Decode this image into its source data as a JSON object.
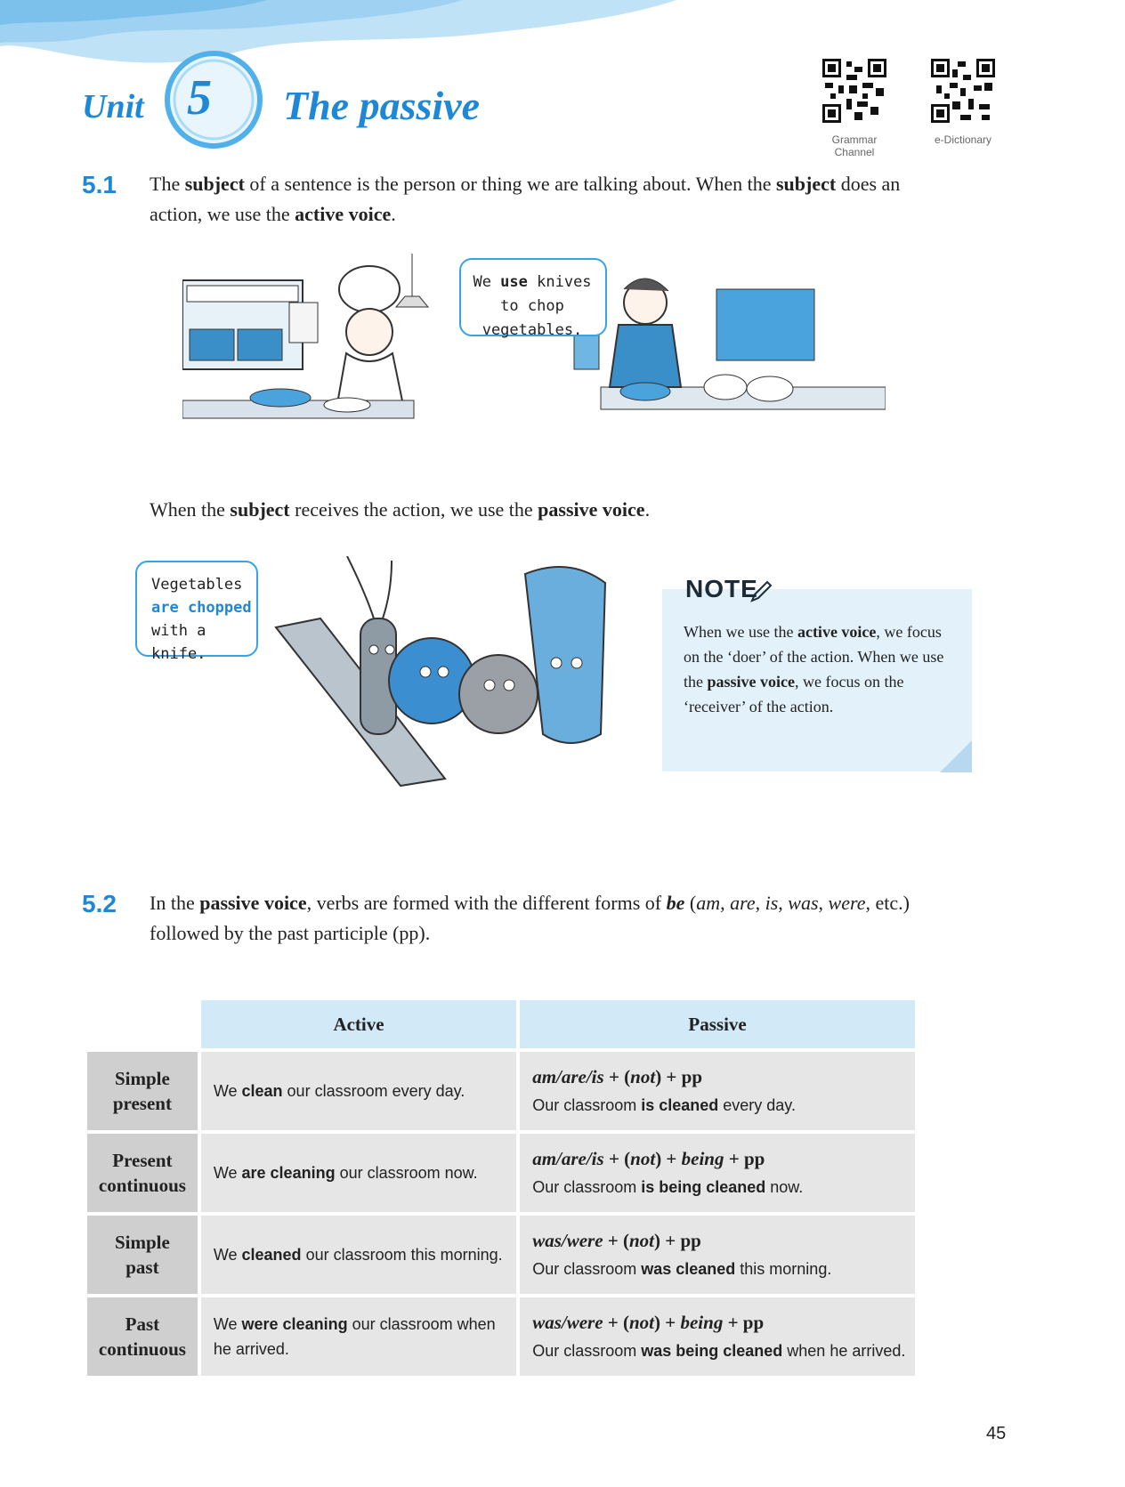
{
  "header": {
    "unit_label": "Unit",
    "unit_number": "5",
    "title": "The passive",
    "qr_codes": [
      {
        "label_line1": "Grammar",
        "label_line2": "Channel"
      },
      {
        "label_line1": "e-Dictionary"
      }
    ]
  },
  "section1": {
    "number": "5.1",
    "para1": {
      "t1": "The ",
      "b1": "subject",
      "t2": " of a sentence is the person or thing we are talking about. When the ",
      "b2": "subject",
      "t3": " does an action, we use the ",
      "b3": "active voice",
      "t4": "."
    },
    "bubble_active": {
      "t1": "We ",
      "b1": "use",
      "t2": " knives to chop vegetables."
    },
    "para2": {
      "t1": "When the ",
      "b1": "subject",
      "t2": " receives the action, we use the ",
      "b2": "passive voice",
      "t3": "."
    },
    "bubble_passive": {
      "t1": "Vegetables ",
      "h1": "are chopped",
      "t2": " with a knife."
    }
  },
  "note": {
    "title": "NOTE",
    "t1": "When we use the ",
    "b1": "active voice",
    "t2": ", we focus on the ‘doer’ of the action. When we use the ",
    "b2": "passive voice",
    "t3": ", we focus on the ‘receiver’ of the action."
  },
  "section2": {
    "number": "5.2",
    "t1": "In the ",
    "b1": "passive voice",
    "t2": ", verbs are formed with the different forms of ",
    "bi1": "be",
    "t3": " (",
    "i1": "am",
    "t4": ", ",
    "i2": "are",
    "t5": ", ",
    "i3": "is",
    "t6": ", ",
    "i4": "was",
    "t7": ", ",
    "i5": "were",
    "t8": ", etc.) followed by the past participle (pp)."
  },
  "table": {
    "headers": {
      "active": "Active",
      "passive": "Passive"
    },
    "rows": [
      {
        "tense_line1": "Simple",
        "tense_line2": "present",
        "active_pre": "We ",
        "active_bold": "clean",
        "active_post": " our classroom every day.",
        "formula_pre": "am/are/is",
        "formula_mid": " + (",
        "formula_not": "not",
        "formula_post": ") + pp",
        "passive_pre": "Our classroom ",
        "passive_bold": "is cleaned",
        "passive_post": " every day."
      },
      {
        "tense_line1": "Present",
        "tense_line2": "continuous",
        "active_pre": "We ",
        "active_bold": "are cleaning",
        "active_post": " our classroom now.",
        "formula_pre": "am/are/is",
        "formula_mid": " + (",
        "formula_not": "not",
        "formula_post": ") + ",
        "formula_being": "being",
        "formula_end": " + pp",
        "passive_pre": "Our classroom ",
        "passive_bold": "is being cleaned",
        "passive_post": " now."
      },
      {
        "tense_line1": "Simple",
        "tense_line2": "past",
        "active_pre": "We ",
        "active_bold": "cleaned",
        "active_post": " our classroom this morning.",
        "formula_pre": "was/were",
        "formula_mid": " + (",
        "formula_not": "not",
        "formula_post": ") + pp",
        "passive_pre": "Our classroom ",
        "passive_bold": "was cleaned",
        "passive_post": " this morning."
      },
      {
        "tense_line1": "Past",
        "tense_line2": "continuous",
        "active_pre": "We ",
        "active_bold": "were cleaning",
        "active_post": " our classroom when he arrived.",
        "formula_pre": "was/were",
        "formula_mid": " + (",
        "formula_not": "not",
        "formula_post": ") + ",
        "formula_being": "being",
        "formula_end": " + pp",
        "passive_pre": "Our classroom ",
        "passive_bold": "was being cleaned",
        "passive_post": " when he arrived."
      }
    ]
  },
  "page_number": "45",
  "colors": {
    "accent": "#1e88d6",
    "header_blue": "#d2e9f8",
    "note_bg": "#e3f1fb",
    "row_head": "#cfcfcf",
    "cell": "#e6e6e6"
  }
}
